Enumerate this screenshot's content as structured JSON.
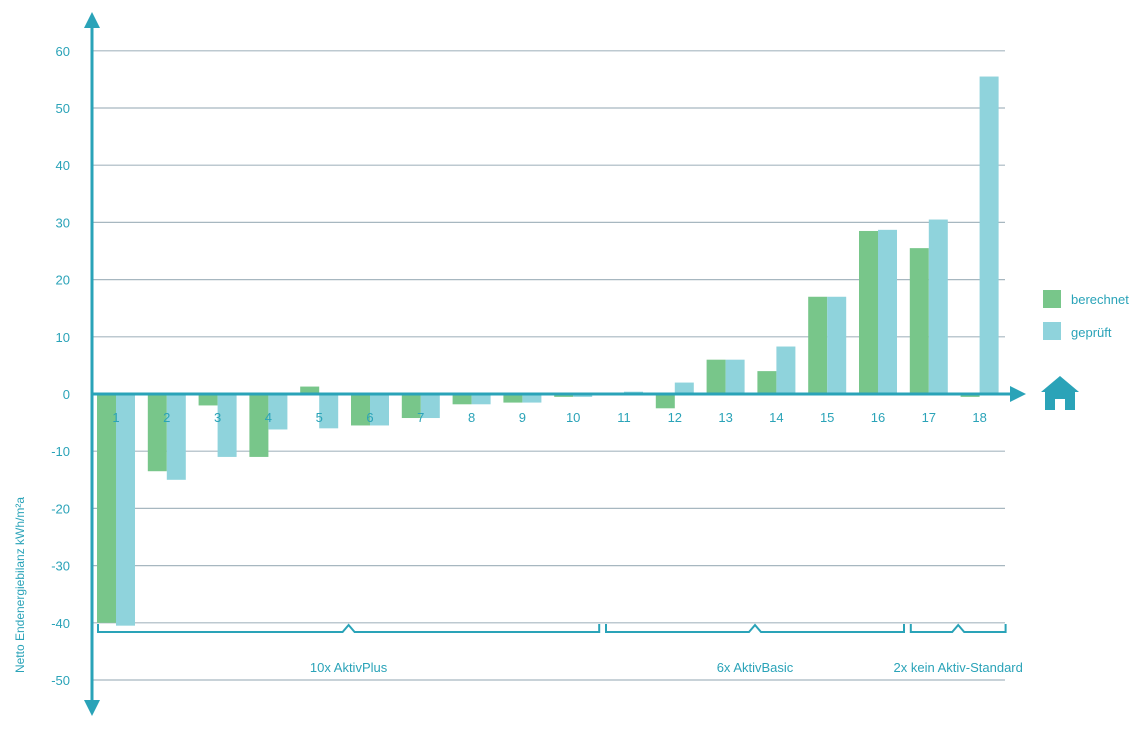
{
  "chart_data": {
    "type": "bar",
    "ylabel": "Netto Endenergiebilanz kWh/m²a",
    "ylim": [
      -50,
      60
    ],
    "yticks": [
      60,
      50,
      40,
      30,
      20,
      10,
      0,
      -10,
      -20,
      -30,
      -40,
      -50
    ],
    "categories": [
      "1",
      "2",
      "3",
      "4",
      "5",
      "6",
      "7",
      "8",
      "9",
      "10",
      "11",
      "12",
      "13",
      "14",
      "15",
      "16",
      "17",
      "18"
    ],
    "series": [
      {
        "name": "berechnet",
        "color": "#78c68a",
        "values": [
          -40,
          -13.5,
          -2,
          -11,
          1.3,
          -5.5,
          -4.2,
          -1.8,
          -1.5,
          -0.5,
          0,
          -2.5,
          6,
          4,
          17,
          28.5,
          25.5,
          -0.5
        ]
      },
      {
        "name": "geprüft",
        "color": "#8fd3dc",
        "values": [
          -40.5,
          -15,
          -11,
          -6.2,
          -6,
          -5.5,
          -4.2,
          -1.8,
          -1.5,
          -0.5,
          0.4,
          2,
          6,
          8.3,
          17,
          28.7,
          30.5,
          55.5
        ]
      }
    ],
    "groups": [
      {
        "label": "10x AktivPlus",
        "from": 1,
        "to": 10
      },
      {
        "label": "6x AktivBasic",
        "from": 11,
        "to": 16
      },
      {
        "label": "2x kein Aktiv-Standard",
        "from": 17,
        "to": 18
      }
    ],
    "grid": true,
    "legend_position": "right",
    "axis_color": "#2aa3b8",
    "grid_color": "#a7b7c0"
  }
}
